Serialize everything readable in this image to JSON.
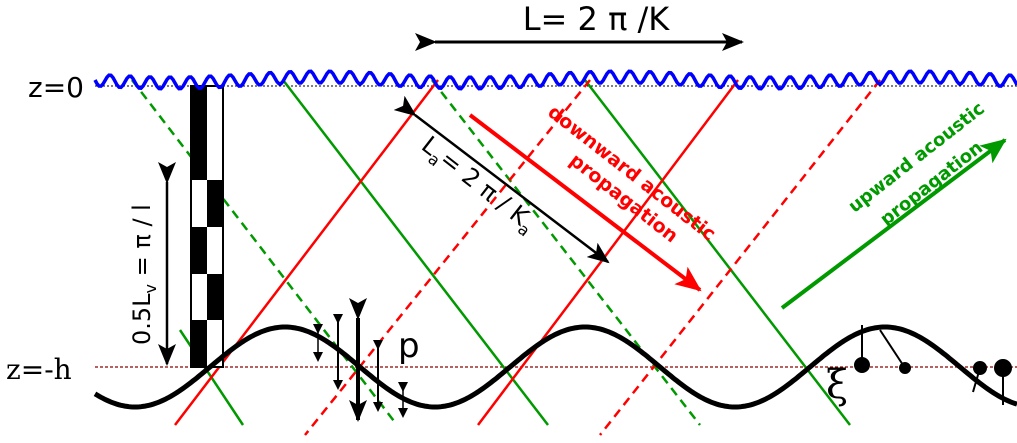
{
  "labels": {
    "wavelength": "L= 2 π /K",
    "surface": "z=0",
    "bottom": "z=-h",
    "acoustic_wavelength_main": "L",
    "acoustic_wavelength_sub": "a",
    "acoustic_wavelength_rest": "= 2 π / K",
    "acoustic_wavelength_sub2": "a",
    "vertical_length": "0.5L",
    "vertical_length_sub": "v",
    "vertical_length_rest": " = π / l",
    "pressure": "p",
    "displacement": "ξ",
    "downward_line1": "downward acoustic",
    "downward_line2": "propagation",
    "upward_line1": "upward acoustic",
    "upward_line2": "propagation"
  },
  "colors": {
    "downward": "#ff0000",
    "upward": "#009900",
    "surface_wave": "#0000ff",
    "bottom_wave": "#000000",
    "bottom_dashed": "#8b0000"
  }
}
